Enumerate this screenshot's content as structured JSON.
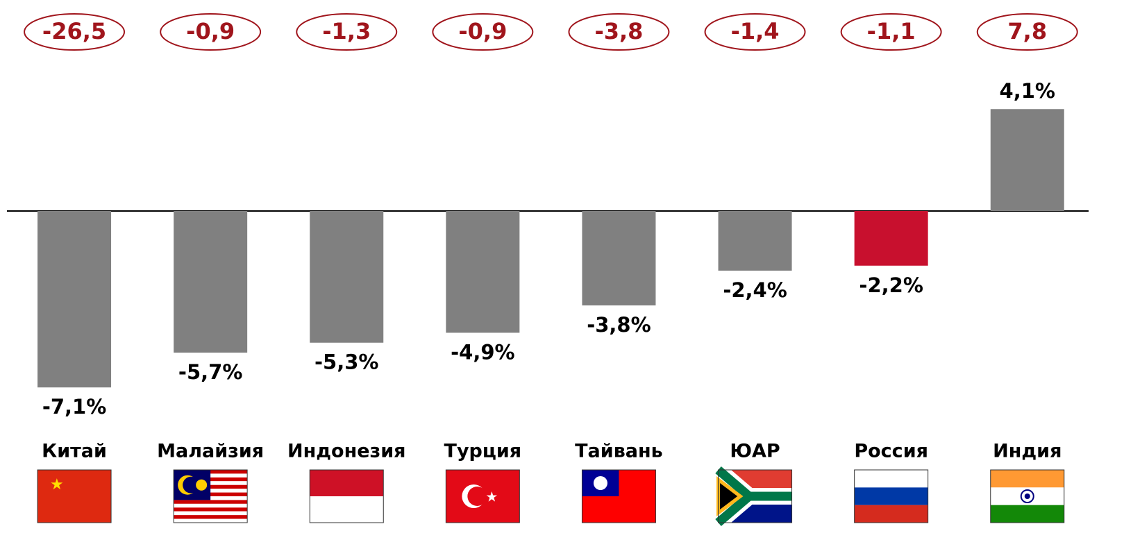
{
  "chart_data": {
    "type": "bar",
    "categories": [
      "Китай",
      "Малайзия",
      "Индонезия",
      "Турция",
      "Тайвань",
      "ЮАР",
      "Россия",
      "Индия"
    ],
    "values": [
      -7.1,
      -5.7,
      -5.3,
      -4.9,
      -3.8,
      -2.4,
      -2.2,
      4.1
    ],
    "value_labels": [
      "-7,1%",
      "-5,7%",
      "-5,3%",
      "-4,9%",
      "-3,8%",
      "-2,4%",
      "-2,2%",
      "4,1%"
    ],
    "colors": [
      "#808080",
      "#808080",
      "#808080",
      "#808080",
      "#808080",
      "#808080",
      "#c8102e",
      "#808080"
    ],
    "annotations": [
      -26.5,
      -0.9,
      -1.3,
      -0.9,
      -3.8,
      -1.4,
      -1.1,
      7.8
    ],
    "annotation_labels": [
      "-26,5",
      "-0,9",
      "-1,3",
      "-0,9",
      "-3,8",
      "-1,4",
      "-1,1",
      "7,8"
    ],
    "ylim": [
      -8,
      5
    ]
  }
}
